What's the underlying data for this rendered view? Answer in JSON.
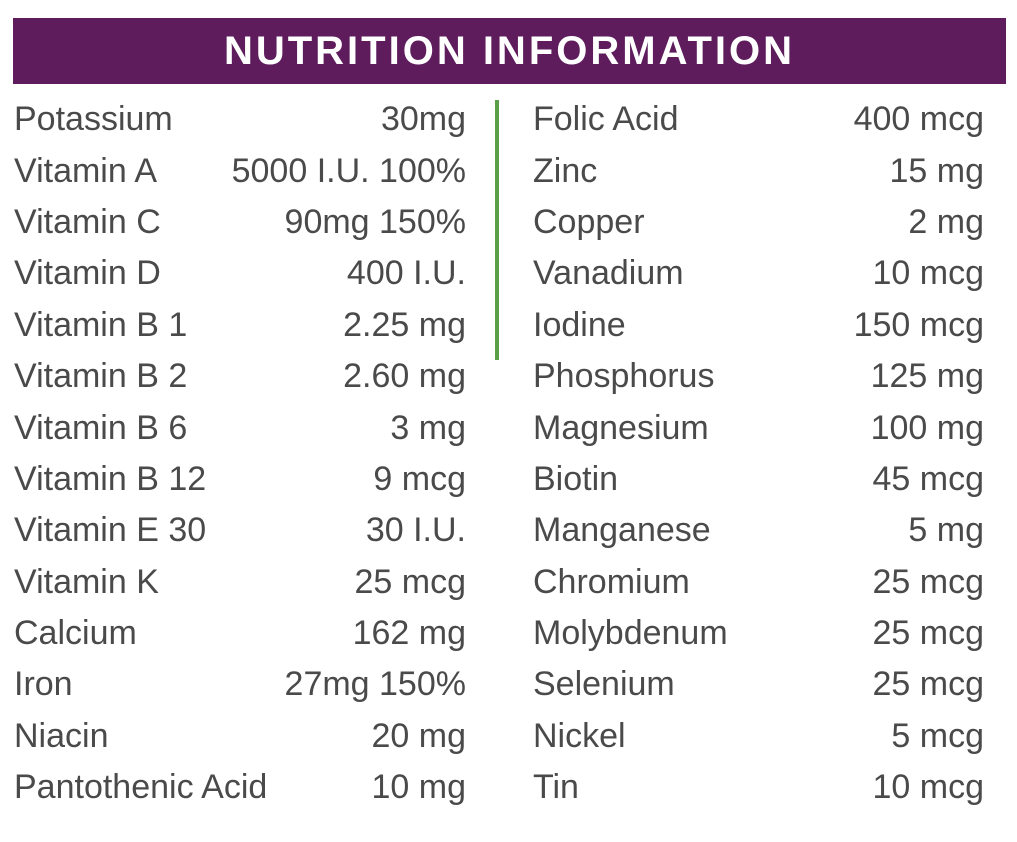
{
  "header": {
    "title": "NUTRITION INFORMATION"
  },
  "colors": {
    "header_bg": "#5e1c5c",
    "divider": "#5a9e45",
    "text": "#4a4a4a"
  },
  "left_column": [
    {
      "name": "Potassium",
      "value": "30mg"
    },
    {
      "name": "Vitamin A",
      "value": "5000 I.U. 100%"
    },
    {
      "name": "Vitamin C",
      "value": "90mg 150%"
    },
    {
      "name": "Vitamin D",
      "value": "400 I.U."
    },
    {
      "name": "Vitamin B 1",
      "value": "2.25 mg"
    },
    {
      "name": "Vitamin B 2",
      "value": "2.60 mg"
    },
    {
      "name": "Vitamin B 6",
      "value": "3 mg"
    },
    {
      "name": "Vitamin B 12",
      "value": "9 mcg"
    },
    {
      "name": "Vitamin E 30",
      "value": "30 I.U."
    },
    {
      "name": "Vitamin K",
      "value": "25 mcg"
    },
    {
      "name": "Calcium",
      "value": "162 mg"
    },
    {
      "name": "Iron",
      "value": "27mg 150%"
    },
    {
      "name": "Niacin",
      "value": "20 mg"
    },
    {
      "name": "Pantothenic Acid",
      "value": "10 mg"
    }
  ],
  "right_column": [
    {
      "name": "Folic Acid",
      "value": "400 mcg"
    },
    {
      "name": "Zinc",
      "value": "15 mg"
    },
    {
      "name": "Copper",
      "value": "2 mg"
    },
    {
      "name": "Vanadium",
      "value": "10 mcg"
    },
    {
      "name": "Iodine",
      "value": "150 mcg"
    },
    {
      "name": "Phosphorus",
      "value": "125 mg"
    },
    {
      "name": "Magnesium",
      "value": "100 mg"
    },
    {
      "name": "Biotin",
      "value": "45 mcg"
    },
    {
      "name": "Manganese",
      "value": "5 mg"
    },
    {
      "name": "Chromium",
      "value": "25 mcg"
    },
    {
      "name": "Molybdenum",
      "value": "25 mcg"
    },
    {
      "name": "Selenium",
      "value": "25 mcg"
    },
    {
      "name": "Nickel",
      "value": "5 mcg"
    },
    {
      "name": "Tin",
      "value": "10 mcg"
    }
  ]
}
